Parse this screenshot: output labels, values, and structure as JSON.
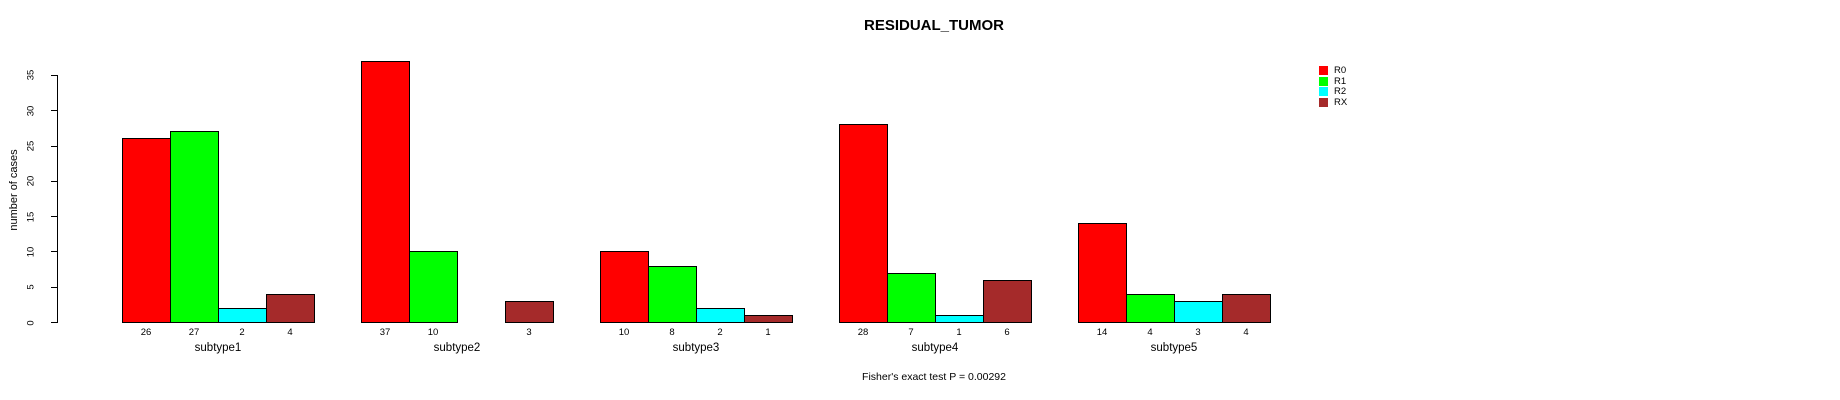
{
  "title": "RESIDUAL_TUMOR",
  "y_axis_label": "number of cases",
  "footer": "Fisher's exact test P = 0.00292",
  "legend": {
    "entries": [
      {
        "label": "R0",
        "color": "#FF0000"
      },
      {
        "label": "R1",
        "color": "#00FF00"
      },
      {
        "label": "R2",
        "color": "#00FFFF"
      },
      {
        "label": "RX",
        "color": "#A52A2A"
      }
    ]
  },
  "chart_data": {
    "type": "bar",
    "grouped": true,
    "title": "RESIDUAL_TUMOR",
    "xlabel": "",
    "ylabel": "number of cases",
    "categories": [
      "subtype1",
      "subtype2",
      "subtype3",
      "subtype4",
      "subtype5"
    ],
    "series": [
      {
        "name": "R0",
        "color": "#FF0000",
        "values": [
          26,
          37,
          10,
          28,
          14
        ]
      },
      {
        "name": "R1",
        "color": "#00FF00",
        "values": [
          27,
          10,
          8,
          7,
          4
        ]
      },
      {
        "name": "R2",
        "color": "#00FFFF",
        "values": [
          2,
          0,
          2,
          1,
          3
        ]
      },
      {
        "name": "RX",
        "color": "#A52A2A",
        "values": [
          4,
          3,
          1,
          6,
          4
        ]
      }
    ],
    "bar_value_labels_shown": true,
    "zero_value_bars_hidden": true,
    "yticks": [
      0,
      5,
      10,
      15,
      20,
      25,
      30,
      35
    ],
    "ylim": [
      0,
      37
    ],
    "grid": false,
    "legend_position": "top-right",
    "annotation": "Fisher's exact test P = 0.00292",
    "bar_border_color": "#000000",
    "text_color": "#000000",
    "background_color": "#FFFFFF"
  }
}
